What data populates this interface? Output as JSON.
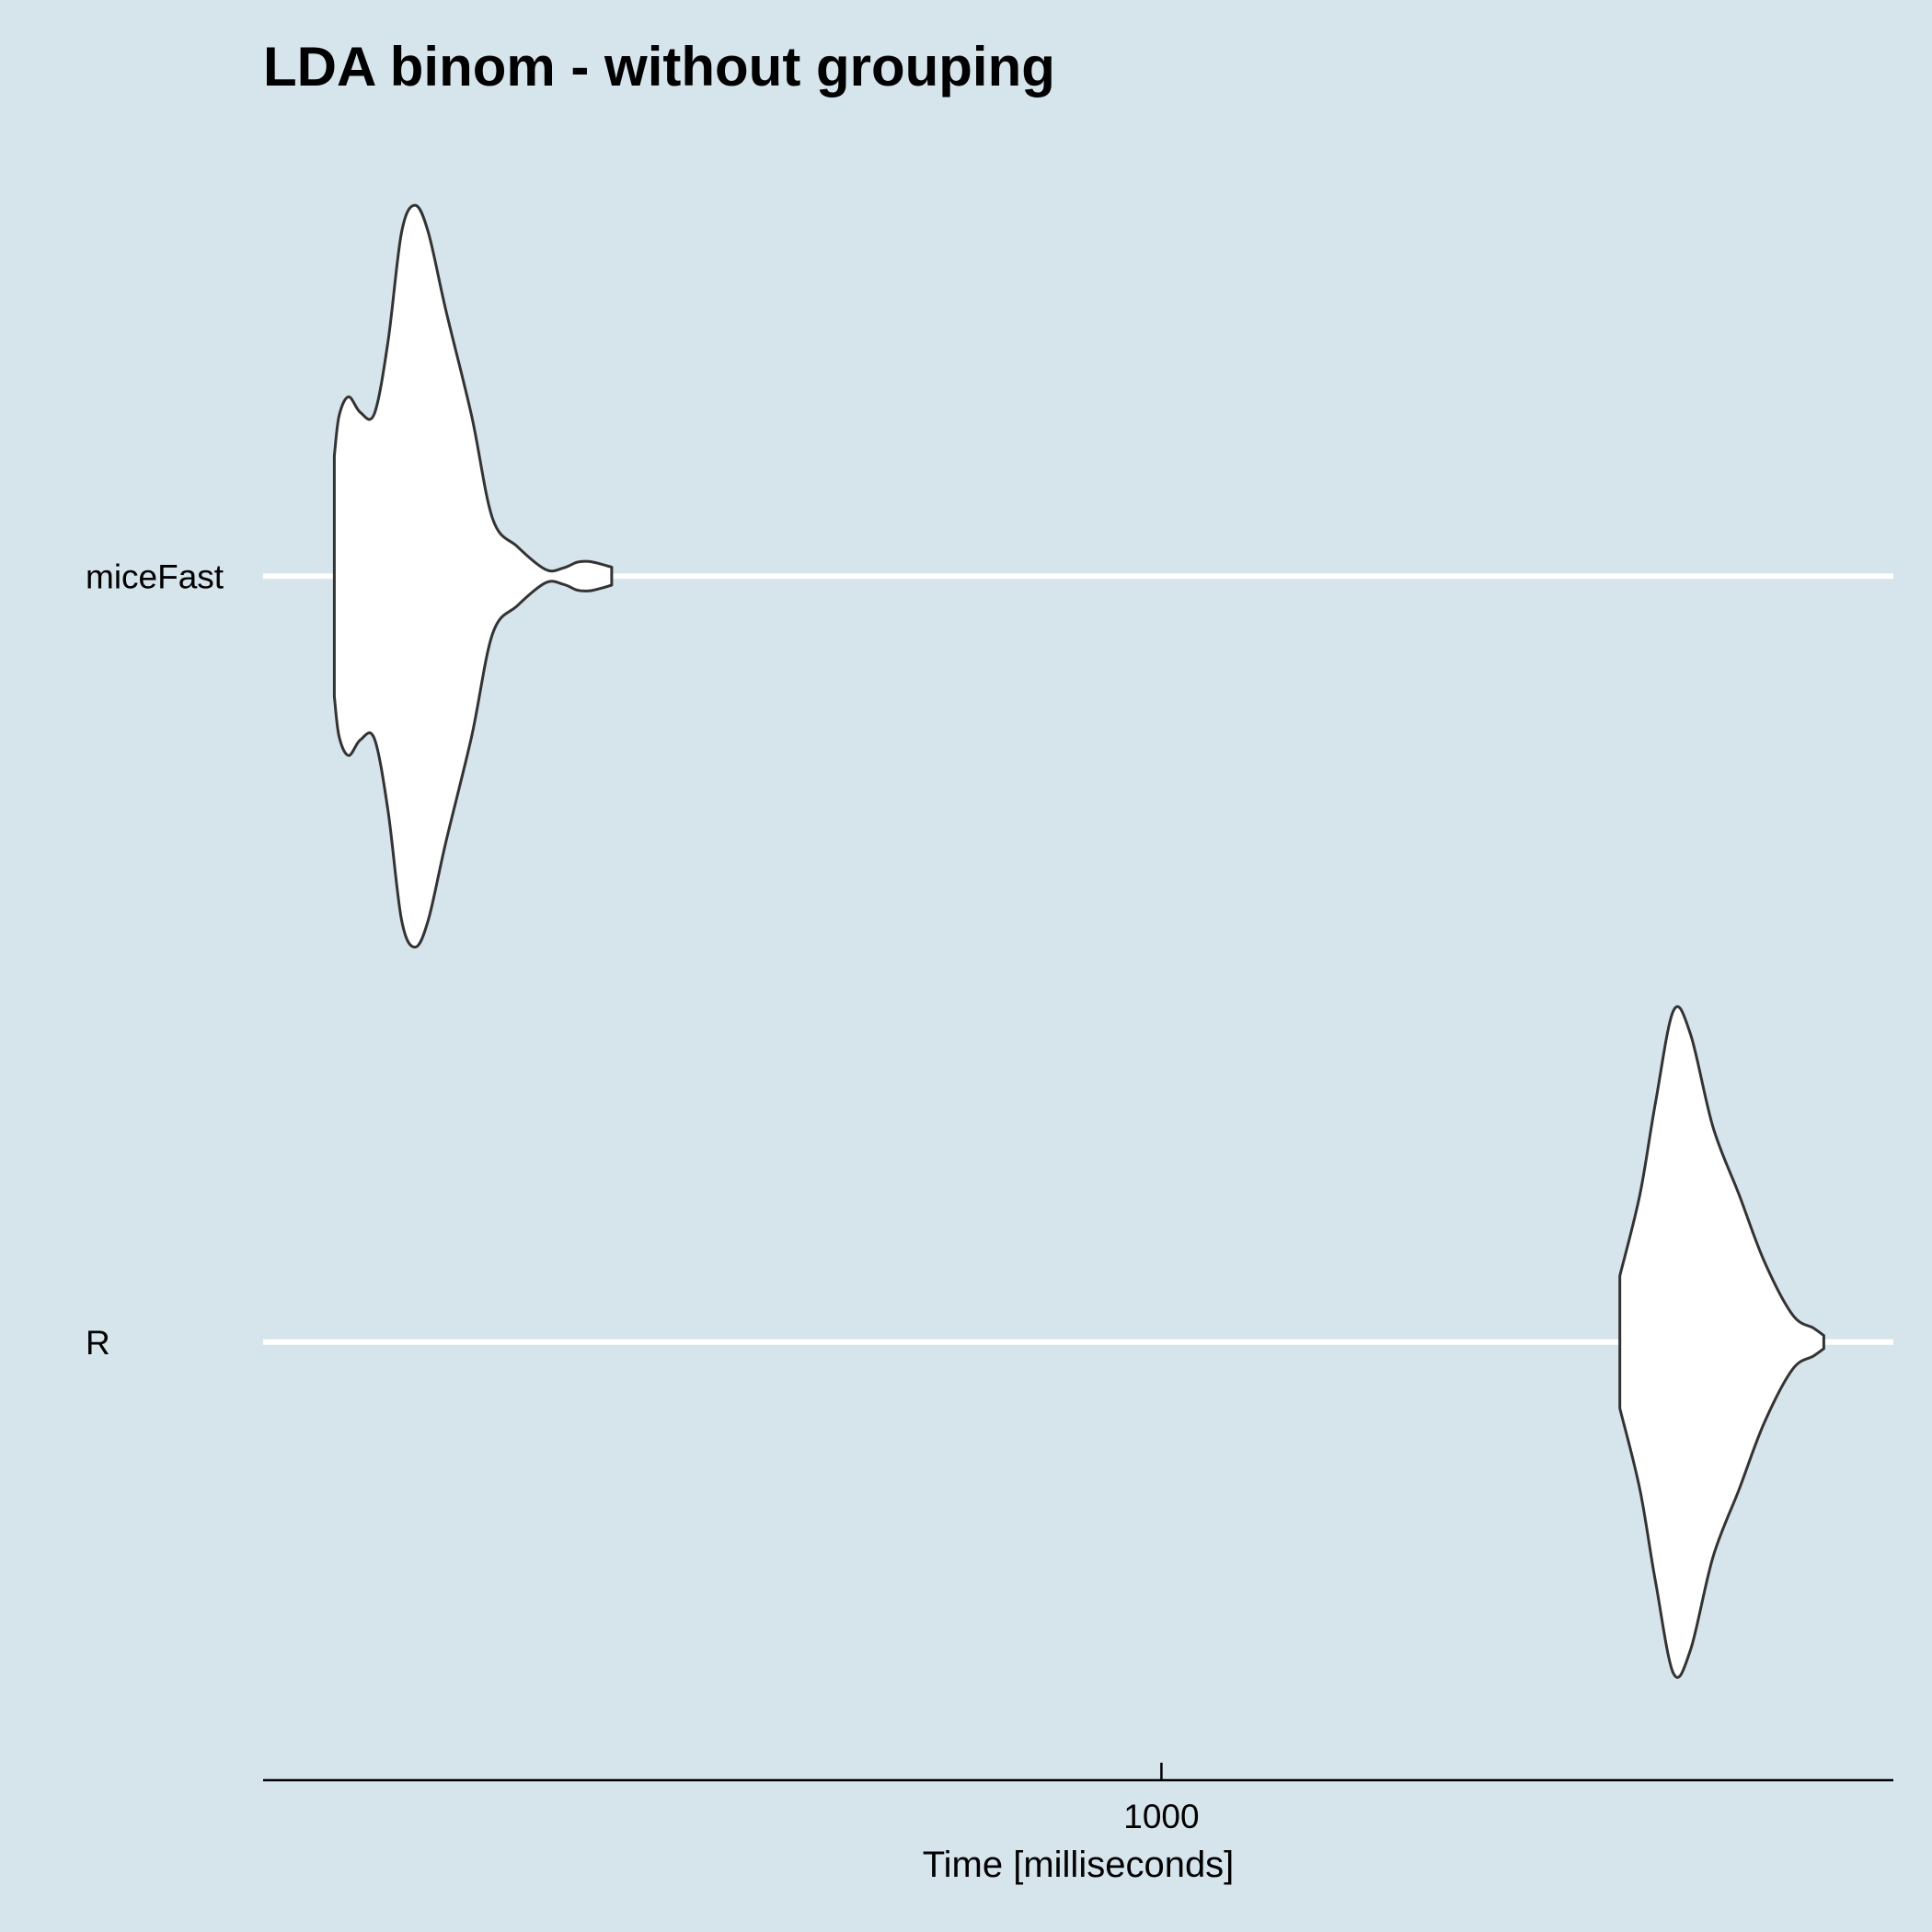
{
  "chart_data": {
    "type": "violin",
    "orientation": "horizontal",
    "title": "LDA binom - without grouping",
    "xlabel": "Time [milliseconds]",
    "ylabel": "",
    "x_scale": "log10",
    "xlim": [
      470,
      1850
    ],
    "x_ticks": [
      1000
    ],
    "x_tick_labels": [
      "1000"
    ],
    "categories": [
      "miceFast",
      "R"
    ],
    "grid": {
      "major_y": true,
      "color": "#ffffff"
    },
    "colors": {
      "background": "#d6e4ec",
      "violin_fill": "#ffffff",
      "violin_outline": "#333333",
      "axis_line": "#000000"
    },
    "series": [
      {
        "category": "miceFast",
        "density": [
          {
            "x": 499,
            "w": 0.147
          },
          {
            "x": 501,
            "w": 0.196
          },
          {
            "x": 505,
            "w": 0.219
          },
          {
            "x": 510,
            "w": 0.2
          },
          {
            "x": 516,
            "w": 0.198
          },
          {
            "x": 522,
            "w": 0.286
          },
          {
            "x": 528,
            "w": 0.42
          },
          {
            "x": 534,
            "w": 0.453
          },
          {
            "x": 540,
            "w": 0.42
          },
          {
            "x": 548,
            "w": 0.325
          },
          {
            "x": 560,
            "w": 0.196
          },
          {
            "x": 570,
            "w": 0.07
          },
          {
            "x": 582,
            "w": 0.036
          },
          {
            "x": 596,
            "w": 0.008
          },
          {
            "x": 605,
            "w": 0.01
          },
          {
            "x": 612,
            "w": 0.017
          },
          {
            "x": 618,
            "w": 0.018
          },
          {
            "x": 624,
            "w": 0.015
          },
          {
            "x": 630,
            "w": 0.011
          }
        ]
      },
      {
        "category": "R",
        "density": [
          {
            "x": 1470,
            "w": 0.081
          },
          {
            "x": 1495,
            "w": 0.18
          },
          {
            "x": 1515,
            "w": 0.294
          },
          {
            "x": 1538,
            "w": 0.405
          },
          {
            "x": 1560,
            "w": 0.376
          },
          {
            "x": 1590,
            "w": 0.262
          },
          {
            "x": 1625,
            "w": 0.18
          },
          {
            "x": 1660,
            "w": 0.098
          },
          {
            "x": 1700,
            "w": 0.033
          },
          {
            "x": 1730,
            "w": 0.017
          },
          {
            "x": 1745,
            "w": 0.008
          }
        ]
      }
    ]
  }
}
